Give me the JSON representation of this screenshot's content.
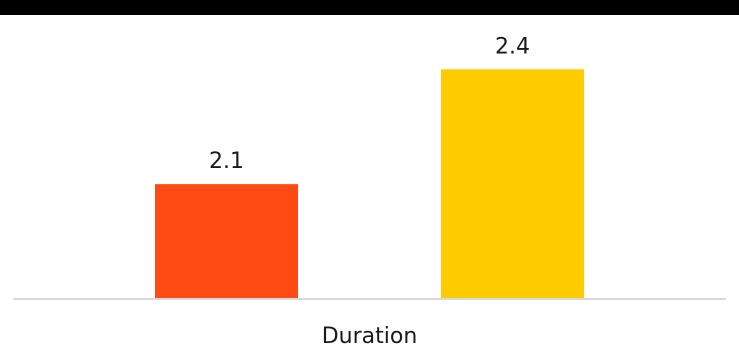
{
  "chart_data": {
    "type": "bar",
    "categories": [
      "Duration"
    ],
    "series": [
      {
        "values": [
          2.1
        ],
        "color": "#FF4A13"
      },
      {
        "values": [
          2.4
        ],
        "color": "#FFCC00"
      }
    ],
    "data_labels": [
      "2.1",
      "2.4"
    ],
    "title": "",
    "xlabel": "",
    "ylabel": "",
    "ylim": [
      1.8,
      2.5
    ],
    "grid": false,
    "legend": "none"
  },
  "colors": {
    "top_rule": "#000000",
    "baseline": "#d9d9d9"
  }
}
